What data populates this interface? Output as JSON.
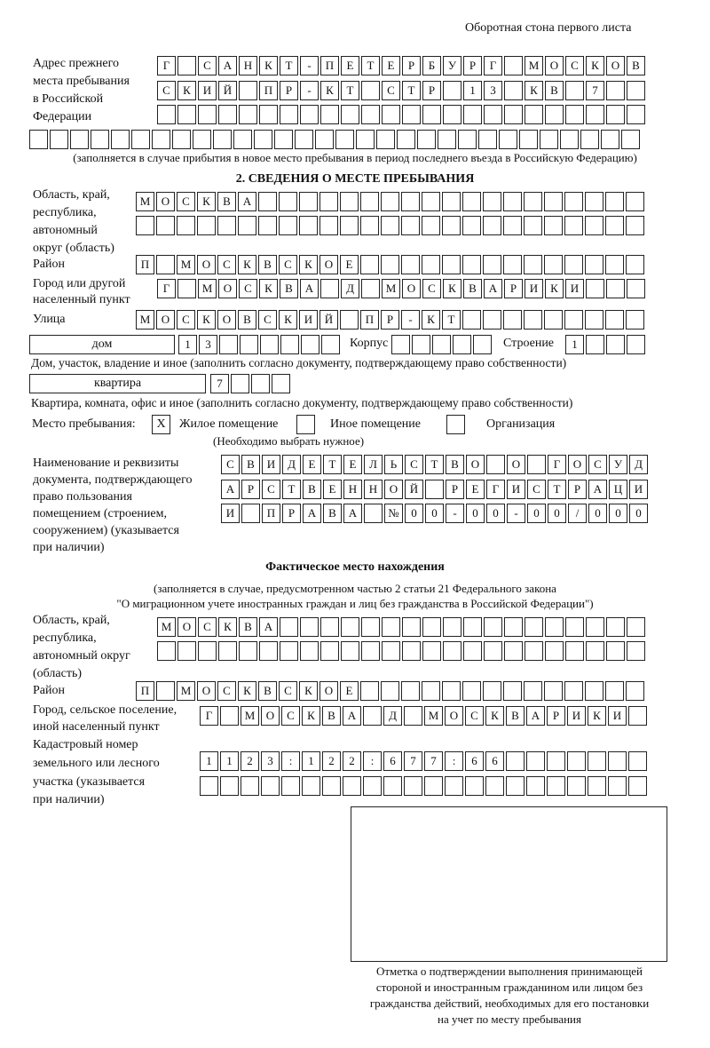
{
  "header": {
    "title": "Оборотная стона первого листа"
  },
  "prev_address": {
    "label": [
      "Адрес прежнего",
      "места пребывания",
      "в Российской",
      "Федерации"
    ],
    "rows": [
      "Г САНКТ-ПЕТЕРБУРГ МОСКОВ",
      "СКИЙ ПР-КТ СТР 13 КВ 7",
      "",
      ""
    ],
    "note": "(заполняется в случае прибытия в новое место пребывания в период последнего въезда в Российскую Федерацию)"
  },
  "section2": {
    "title": "2. СВЕДЕНИЯ О МЕСТЕ ПРЕБЫВАНИЯ",
    "region_label": [
      "Область, край,",
      "республика,",
      "автономный",
      "округ (область)"
    ],
    "region_rows": [
      "МОСКВА",
      ""
    ],
    "district_label": "Район",
    "district": "П МОСКВСКОЕ",
    "city_label": [
      "Город или другой",
      "населенный пункт"
    ],
    "city": "Г МОСКВА Д МОСКВАРИКИ",
    "street_label": "Улица",
    "street": "МОСКОВСКИЙ ПР-КТ",
    "house_type": "дом",
    "house": "13",
    "korpus_label": "Корпус",
    "korpus": "",
    "building_label": "Строение",
    "building": "1",
    "house_note": "Дом, участок, владение и иное (заполнить согласно документу, подтверждающему право собственности)",
    "flat_type": "квартира",
    "flat": "7",
    "flat_note": "Квартира, комната, офис и иное (заполнить согласно документу, подтверждающему право собственности)",
    "place_label": "Место пребывания:",
    "place_options": [
      {
        "label": "Жилое помещение",
        "mark": "X"
      },
      {
        "label": "Иное помещение",
        "mark": ""
      },
      {
        "label": "Организация",
        "mark": ""
      }
    ],
    "place_note": "(Необходимо выбрать нужное)",
    "doc_label": [
      "Наименование и реквизиты",
      "документа, подтверждающего",
      "право пользования",
      "помещением (строением,",
      "сооружением) (указывается",
      "при наличии)"
    ],
    "doc_rows": [
      "СВИДЕТЕЛЬСТВО О ГОСУД",
      "АРСТВЕННОЙ РЕГИСТРАЦИ",
      "И ПРАВА №00-00-00/000"
    ]
  },
  "actual": {
    "title": "Фактическое место нахождения",
    "note": [
      "(заполняется в случае, предусмотренном частью 2 статьи 21 Федерального закона",
      "\"О миграционном учете иностранных граждан и лиц без гражданства в Российской Федерации\")"
    ],
    "region_label": [
      "Область, край,",
      "республика,",
      "автономный округ",
      "(область)"
    ],
    "region_rows": [
      "МОСКВА",
      ""
    ],
    "district_label": "Район",
    "district": "П МОСКВСКОЕ",
    "city_label": [
      "Город, сельское поселение,",
      "иной населенный пункт"
    ],
    "city": "Г МОСКВА Д МОСКВАРИКИ",
    "cadastre_label": [
      "Кадастровый номер",
      "земельного или лесного",
      "участка (указывается",
      "при наличии)"
    ],
    "cadastre_rows": [
      "1123:122:677:66",
      ""
    ]
  },
  "stamp": {
    "caption": [
      "Отметка о подтверждении выполнения принимающей",
      "стороной и иностранным гражданином или лицом без",
      "гражданства действий, необходимых для его постановки",
      "на учет по месту пребывания"
    ]
  }
}
